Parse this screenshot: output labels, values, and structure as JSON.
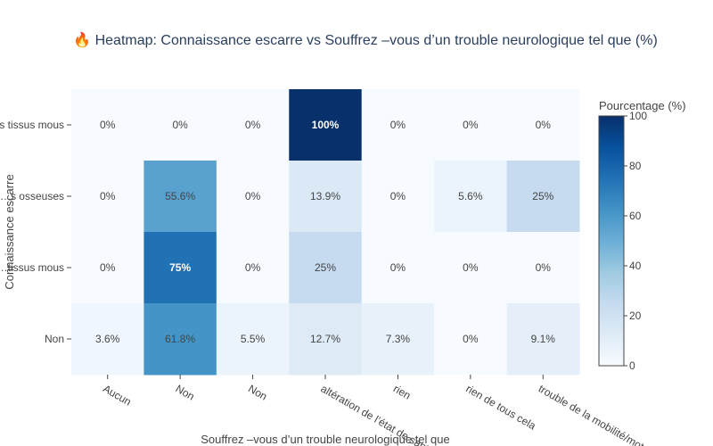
{
  "chart_data": {
    "type": "heatmap",
    "title": "🔥 Heatmap: Connaissance escarre vs Souffrez –vous d’un trouble neurologique tel que (%)",
    "xlabel": "Souffrez –vous d’un trouble neurologique tel que",
    "ylabel": "Connaissance escarre",
    "x_categories": [
      "Aucun",
      "Non",
      "Non",
      "altération de l’état de santé",
      "rien",
      "rien de tous cela",
      "trouble de la mobilité/moteur"
    ],
    "y_categories": [
      "…s tissus mous",
      "…s osseuses",
      "…tissus mous",
      "Non"
    ],
    "values": [
      [
        0,
        0,
        0,
        100,
        0,
        0,
        0
      ],
      [
        0,
        55.6,
        0,
        13.9,
        0,
        5.6,
        25
      ],
      [
        0,
        75,
        0,
        25,
        0,
        0,
        0
      ],
      [
        3.6,
        61.8,
        5.5,
        12.7,
        7.3,
        0,
        9.1
      ]
    ],
    "labels": [
      [
        "0%",
        "0%",
        "0%",
        "100%",
        "0%",
        "0%",
        "0%"
      ],
      [
        "0%",
        "55.6%",
        "0%",
        "13.9%",
        "0%",
        "5.6%",
        "25%"
      ],
      [
        "0%",
        "75%",
        "0%",
        "25%",
        "0%",
        "0%",
        "0%"
      ],
      [
        "3.6%",
        "61.8%",
        "5.5%",
        "12.7%",
        "7.3%",
        "0%",
        "9.1%"
      ]
    ],
    "colorscale": "Blues",
    "colorbar": {
      "title": "Pourcentage (%)",
      "range": [
        0,
        100
      ],
      "ticks": [
        "0",
        "20",
        "40",
        "60",
        "80",
        "100"
      ]
    }
  }
}
